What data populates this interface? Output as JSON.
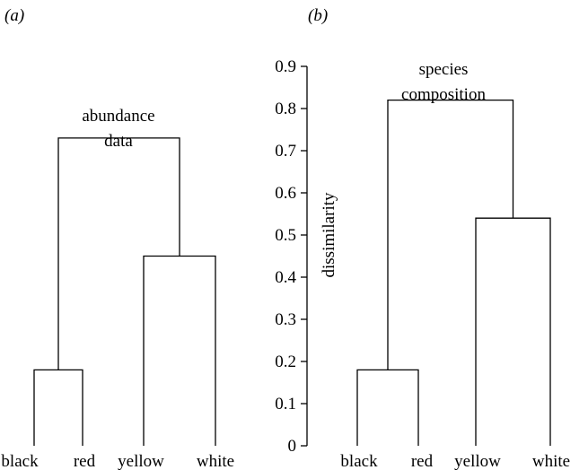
{
  "chart_data": [
    {
      "type": "dendrogram",
      "panel_label": "(a)",
      "annotation": [
        "abundance",
        "data"
      ],
      "leaves": [
        "black",
        "red",
        "yellow",
        "white"
      ],
      "merges": [
        {
          "left": "black",
          "right": "red",
          "height": 0.18
        },
        {
          "left": "yellow",
          "right": "white",
          "height": 0.45
        },
        {
          "left": "black+red",
          "right": "yellow+white",
          "height": 0.73
        }
      ],
      "ylim": [
        0,
        0.9
      ],
      "y_axis_shown": false
    },
    {
      "type": "dendrogram",
      "panel_label": "(b)",
      "annotation": [
        "species",
        "composition"
      ],
      "leaves": [
        "black",
        "red",
        "yellow",
        "white"
      ],
      "merges": [
        {
          "left": "black",
          "right": "red",
          "height": 0.18
        },
        {
          "left": "yellow",
          "right": "white",
          "height": 0.54
        },
        {
          "left": "black+red",
          "right": "yellow+white",
          "height": 0.82
        }
      ],
      "ylabel": "dissimilarity",
      "ylim": [
        0,
        0.9
      ],
      "yticks": [
        0,
        0.1,
        0.2,
        0.3,
        0.4,
        0.5,
        0.6,
        0.7,
        0.8,
        0.9
      ],
      "ytick_labels": [
        "0",
        "0.1",
        "0.2",
        "0.3",
        "0.4",
        "0.5",
        "0.6",
        "0.7",
        "0.8",
        "0.9"
      ],
      "y_axis_shown": true
    }
  ]
}
